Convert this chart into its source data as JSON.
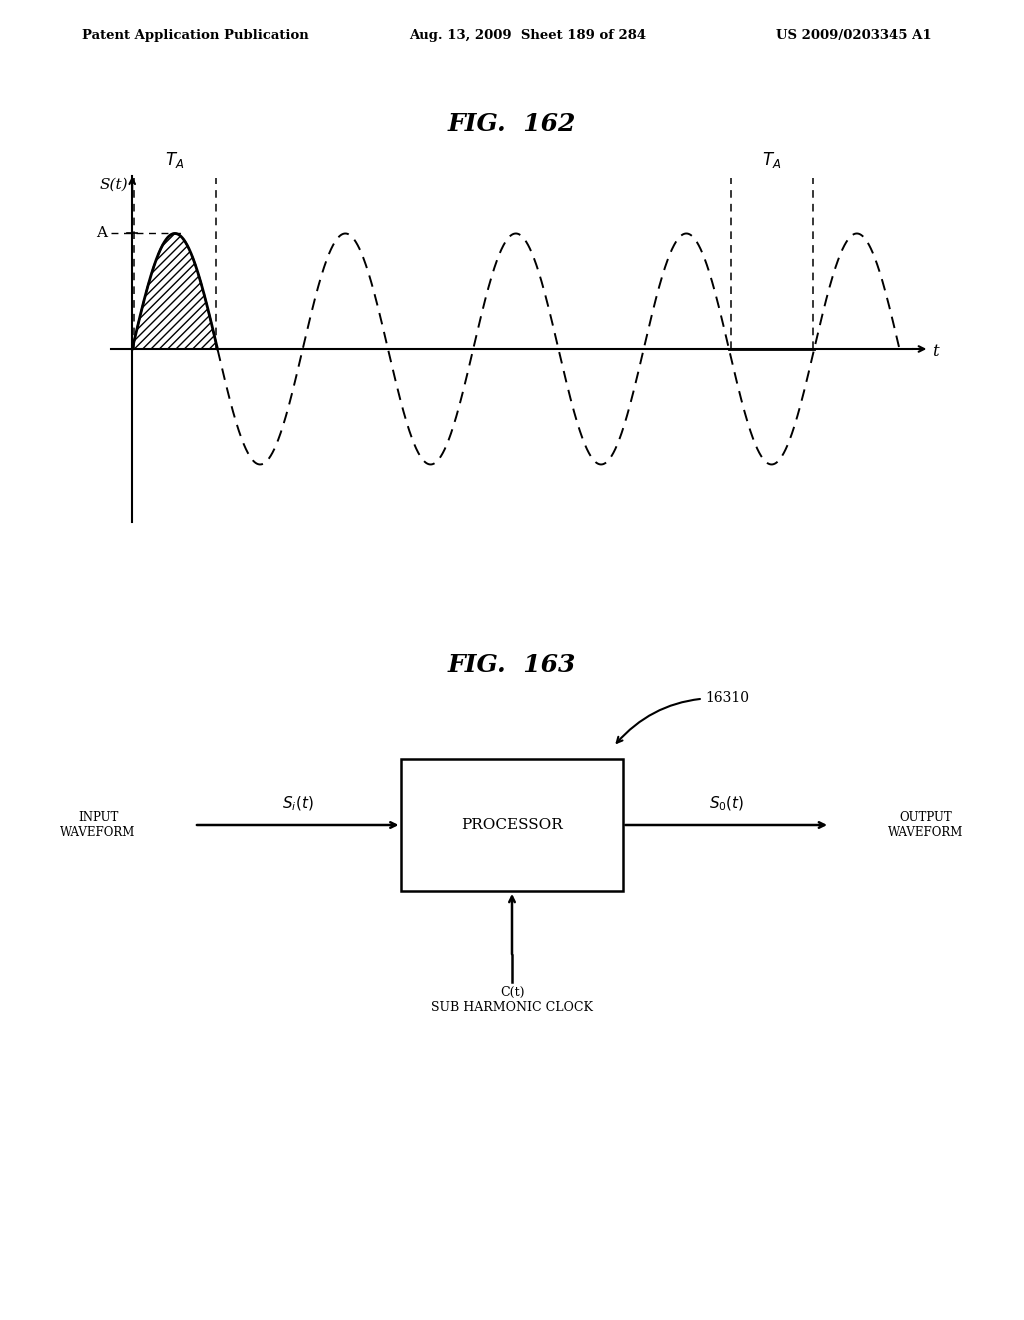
{
  "header_left": "Patent Application Publication",
  "header_mid": "Aug. 13, 2009  Sheet 189 of 284",
  "header_right": "US 2009/0203345 A1",
  "fig162_title": "FIG.  162",
  "fig163_title": "FIG.  163",
  "bg_color": "#ffffff",
  "line_color": "#000000",
  "fig163_label": "16310",
  "processor_label": "PROCESSOR",
  "input_label": "INPUT\nWAVEFORM",
  "output_label": "OUTPUT\nWAVEFORM",
  "si_label": "$S_i(t)$",
  "so_label": "$S_0(t)$",
  "clock_label": "C(t)\nSUB HARMONIC CLOCK"
}
